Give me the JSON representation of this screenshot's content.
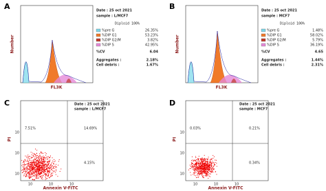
{
  "panels": [
    {
      "kind": "histogram",
      "letter": "A",
      "date": "Date : 25 oct 2021",
      "sample": "sample : L/MCF7",
      "diploid": "Diploid 100%",
      "stats": [
        {
          "label": "%pre G",
          "value": "26.35%"
        },
        {
          "label": "%DIP G1",
          "value": "53.23%"
        },
        {
          "label": "%DIP G2/M",
          "value": "3.82%"
        },
        {
          "label": "%DIP S",
          "value": "42.95%"
        }
      ],
      "cv_label": "%CV",
      "cv": "6.04",
      "aggregates_label": "Aggregates :",
      "aggregates": "2.18%",
      "debris_label": "Cell debris :",
      "debris": "1.67%",
      "x_label": "FL3K",
      "y_label": "Number"
    },
    {
      "kind": "histogram",
      "letter": "B",
      "date": "Date : 25 oct 2021",
      "sample": "sample : MCF7",
      "diploid": "Diploid 100%",
      "stats": [
        {
          "label": "%pre G",
          "value": "1.48%"
        },
        {
          "label": "%DIP G1",
          "value": "58.02%"
        },
        {
          "label": "%DIP G2/M",
          "value": "5.79%"
        },
        {
          "label": "%DIP S",
          "value": "36.19%"
        }
      ],
      "cv_label": "%CV",
      "cv": "4.65",
      "aggregates_label": "Aggregates :",
      "aggregates": "1.44%",
      "debris_label": "Cell debris :",
      "debris": "2.31%",
      "x_label": "FL3K",
      "y_label": "Number"
    },
    {
      "kind": "dotplot",
      "letter": "C",
      "date": "Date : 25 oct 2021",
      "sample": "sample : L/MCF7",
      "upper_left": "7.51%",
      "upper_right": "14.69%",
      "lower_right": "4.15%",
      "x_tick_labels": [
        "10",
        "10",
        "10"
      ],
      "y_tick_labels": [
        "10",
        "10",
        "10"
      ],
      "x_label": "Annexin V-FITC",
      "y_label": "PI"
    },
    {
      "kind": "dotplot",
      "letter": "D",
      "date": "Date : 25 oct 2021",
      "sample": "sample : MCF7",
      "upper_left": "0.03%",
      "upper_right": "0.21%",
      "lower_right": "0.34%",
      "x_tick_labels": [
        "10",
        "10",
        "10"
      ],
      "y_tick_labels": [
        "10",
        "10",
        "10"
      ],
      "x_label": "Annexin V-FITC",
      "y_label": "PI"
    }
  ]
}
